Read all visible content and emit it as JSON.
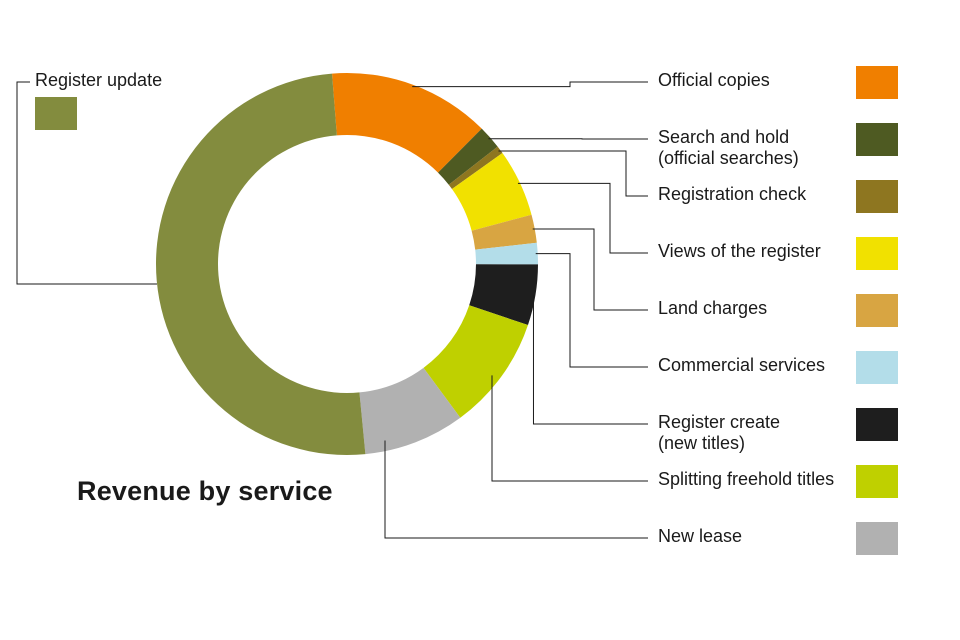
{
  "chart_data": {
    "type": "pie",
    "donut": true,
    "title": "Revenue by service",
    "slices": [
      {
        "name": "Register update",
        "value": 52.8,
        "color": "#838c3e"
      },
      {
        "name": "Official copies",
        "value": 14.4,
        "color": "#f07f00"
      },
      {
        "name": "Search and hold\n(official searches)",
        "value": 2.1,
        "color": "#4e5a22"
      },
      {
        "name": "Registration check",
        "value": 0.7,
        "color": "#8e7620"
      },
      {
        "name": "Views of the register",
        "value": 6.0,
        "color": "#f1e100"
      },
      {
        "name": "Land charges",
        "value": 2.5,
        "color": "#d8a542"
      },
      {
        "name": "Commercial services",
        "value": 1.9,
        "color": "#b3dde9"
      },
      {
        "name": "Register create\n(new titles)",
        "value": 5.4,
        "color": "#1e1e1e"
      },
      {
        "name": "Splitting freehold titles",
        "value": 10.2,
        "color": "#bfd000"
      },
      {
        "name": "New lease",
        "value": 9.0,
        "color": "#b1b1b1"
      }
    ]
  }
}
